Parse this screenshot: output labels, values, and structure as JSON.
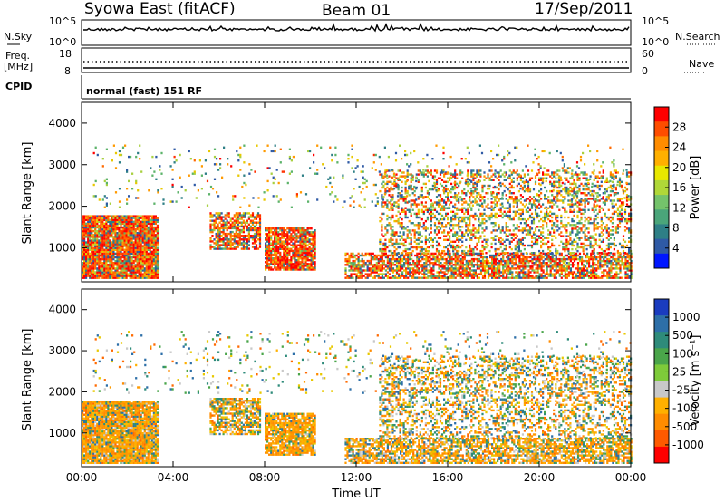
{
  "header": {
    "title": "Syowa East (fitACF)",
    "beam": "Beam 01",
    "date": "17/Sep/2011"
  },
  "panel_noise": {
    "left_label": "N.Sky",
    "right_label": "N.Search",
    "left_ticks": [
      "10^5",
      "10^0"
    ],
    "right_ticks": [
      "10^5",
      "10^0"
    ]
  },
  "panel_freq": {
    "left_label_1": "Freq.",
    "left_label_2": "[MHz]",
    "right_label": "Nave",
    "left_ticks": [
      "18",
      "8"
    ],
    "right_ticks": [
      "60",
      "0"
    ]
  },
  "panel_cpid": {
    "label": "CPID",
    "text": "normal (fast) 151 RF"
  },
  "colorbars": {
    "power": {
      "label": "Power [dB]",
      "ticks": [
        "28",
        "24",
        "20",
        "16",
        "12",
        "8",
        "4"
      ],
      "colors": [
        "#ff0000",
        "#ff4d00",
        "#ff8c00",
        "#ffb000",
        "#e8e800",
        "#b0d838",
        "#74c36b",
        "#4aa57a",
        "#2e7f86",
        "#2f5aa5",
        "#0016ff"
      ]
    },
    "velocity": {
      "label": "Velocity [m s⁻¹]",
      "ticks": [
        "1000",
        "500",
        "100",
        "25",
        "-25",
        "-100",
        "-500",
        "-1000"
      ],
      "colors": [
        "#1a3cbf",
        "#2d6fa8",
        "#2e8b7a",
        "#4aa54a",
        "#7ecb3a",
        "#c8c8c8",
        "#ffb000",
        "#ff8c00",
        "#ff5a00",
        "#ff0000"
      ]
    }
  },
  "chart_data": [
    {
      "type": "heatmap",
      "title": "",
      "xlabel": "",
      "ylabel": "Slant Range [km]",
      "xlim": [
        "00:00",
        "24:00"
      ],
      "ylim": [
        180,
        4500
      ],
      "y_ticks": [
        "4000",
        "3000",
        "2000",
        "1000"
      ],
      "colorbar": "Power [dB]"
    },
    {
      "type": "heatmap",
      "title": "",
      "xlabel": "Time UT",
      "ylabel": "Slant Range [km]",
      "xlim": [
        "00:00",
        "24:00"
      ],
      "ylim": [
        180,
        4500
      ],
      "x_ticks": [
        "00:00",
        "04:00",
        "08:00",
        "12:00",
        "16:00",
        "20:00",
        "00:00"
      ],
      "y_ticks": [
        "4000",
        "3000",
        "2000",
        "1000"
      ],
      "colorbar": "Velocity [m s⁻¹]"
    }
  ]
}
